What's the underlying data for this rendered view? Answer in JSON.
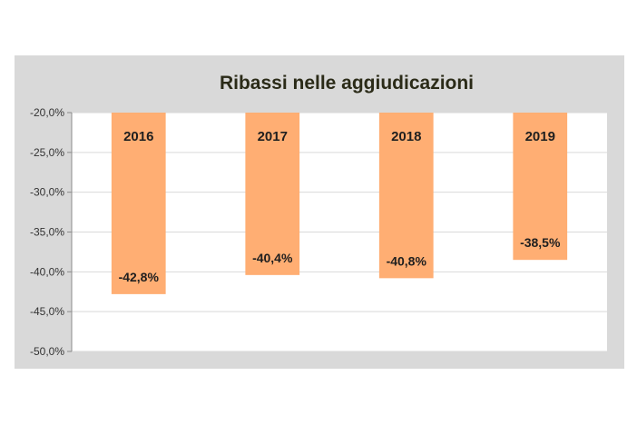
{
  "chart_data": {
    "type": "bar",
    "title": "Ribassi nelle aggiudicazioni",
    "categories": [
      "2016",
      "2017",
      "2018",
      "2019"
    ],
    "values": [
      -42.8,
      -40.4,
      -40.8,
      -38.5
    ],
    "value_labels": [
      "-42,8%",
      "-40,4%",
      "-40,8%",
      "-38,5%"
    ],
    "ylim": [
      -50,
      -20
    ],
    "yticks": [
      "-20,0%",
      "-25,0%",
      "-30,0%",
      "-35,0%",
      "-40,0%",
      "-45,0%",
      "-50,0%"
    ],
    "xlabel": "",
    "ylabel": "",
    "grid": true,
    "legend": "none",
    "colors": {
      "bar": "#FFAE73",
      "frame": "#D9D9D9",
      "plot_bg": "#FFFFFF",
      "gridline": "#D9D9D9"
    }
  }
}
